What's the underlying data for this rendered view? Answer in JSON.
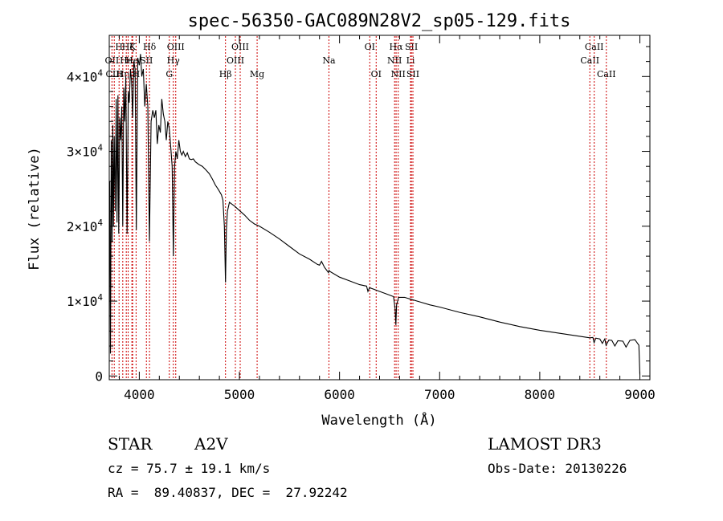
{
  "chart_data": {
    "type": "line",
    "title": "spec-56350-GAC089N28V2_sp05-129.fits",
    "xlabel": "Wavelength (Å)",
    "ylabel": "Flux (relative)",
    "xlim": [
      3700,
      9100
    ],
    "ylim": [
      -500,
      45500
    ],
    "x_ticks": [
      {
        "value": 4000,
        "label": "4000"
      },
      {
        "value": 5000,
        "label": "5000"
      },
      {
        "value": 6000,
        "label": "6000"
      },
      {
        "value": 7000,
        "label": "7000"
      },
      {
        "value": 8000,
        "label": "8000"
      },
      {
        "value": 9000,
        "label": "9000"
      }
    ],
    "y_ticks": [
      {
        "value": 0,
        "label": "0",
        "exp": ""
      },
      {
        "value": 10000,
        "label": "1×10",
        "exp": "4"
      },
      {
        "value": 20000,
        "label": "2×10",
        "exp": "4"
      },
      {
        "value": 30000,
        "label": "3×10",
        "exp": "4"
      },
      {
        "value": 40000,
        "label": "4×10",
        "exp": "4"
      }
    ],
    "line_color": "#000000",
    "marker_color": "#cc0000",
    "spectrum": [
      [
        3705,
        26000
      ],
      [
        3712,
        3000
      ],
      [
        3720,
        31500
      ],
      [
        3728,
        18000
      ],
      [
        3735,
        33500
      ],
      [
        3742,
        20000
      ],
      [
        3750,
        32000
      ],
      [
        3760,
        22000
      ],
      [
        3770,
        37000
      ],
      [
        3778,
        20500
      ],
      [
        3787,
        37500
      ],
      [
        3795,
        19000
      ],
      [
        3805,
        34500
      ],
      [
        3815,
        31500
      ],
      [
        3825,
        36000
      ],
      [
        3835,
        20000
      ],
      [
        3845,
        38500
      ],
      [
        3855,
        34000
      ],
      [
        3865,
        40000
      ],
      [
        3878,
        19000
      ],
      [
        3890,
        38000
      ],
      [
        3900,
        36500
      ],
      [
        3912,
        41000
      ],
      [
        3922,
        39500
      ],
      [
        3934,
        34500
      ],
      [
        3945,
        42000
      ],
      [
        3958,
        41000
      ],
      [
        3970,
        19500
      ],
      [
        3985,
        42500
      ],
      [
        4000,
        41500
      ],
      [
        4012,
        43000
      ],
      [
        4025,
        40000
      ],
      [
        4040,
        41000
      ],
      [
        4055,
        36000
      ],
      [
        4070,
        39000
      ],
      [
        4085,
        36000
      ],
      [
        4101,
        18000
      ],
      [
        4118,
        34000
      ],
      [
        4135,
        35500
      ],
      [
        4150,
        34500
      ],
      [
        4165,
        35500
      ],
      [
        4180,
        31000
      ],
      [
        4195,
        33500
      ],
      [
        4210,
        32500
      ],
      [
        4225,
        37000
      ],
      [
        4240,
        35000
      ],
      [
        4255,
        34000
      ],
      [
        4270,
        31500
      ],
      [
        4285,
        34000
      ],
      [
        4300,
        33000
      ],
      [
        4315,
        30500
      ],
      [
        4328,
        28000
      ],
      [
        4340,
        16000
      ],
      [
        4352,
        28000
      ],
      [
        4365,
        30000
      ],
      [
        4380,
        29000
      ],
      [
        4395,
        31500
      ],
      [
        4410,
        30000
      ],
      [
        4425,
        29500
      ],
      [
        4440,
        30000
      ],
      [
        4460,
        29300
      ],
      [
        4480,
        29800
      ],
      [
        4500,
        29000
      ],
      [
        4520,
        28900
      ],
      [
        4540,
        29000
      ],
      [
        4560,
        28600
      ],
      [
        4580,
        28400
      ],
      [
        4600,
        28200
      ],
      [
        4630,
        28000
      ],
      [
        4660,
        27600
      ],
      [
        4700,
        27000
      ],
      [
        4730,
        26300
      ],
      [
        4760,
        25500
      ],
      [
        4790,
        24900
      ],
      [
        4820,
        24200
      ],
      [
        4835,
        23500
      ],
      [
        4850,
        20000
      ],
      [
        4861,
        12500
      ],
      [
        4870,
        19500
      ],
      [
        4880,
        22000
      ],
      [
        4900,
        23200
      ],
      [
        4920,
        23000
      ],
      [
        4950,
        22700
      ],
      [
        5000,
        22100
      ],
      [
        5050,
        21500
      ],
      [
        5100,
        20800
      ],
      [
        5150,
        20300
      ],
      [
        5200,
        20000
      ],
      [
        5300,
        19200
      ],
      [
        5400,
        18300
      ],
      [
        5500,
        17300
      ],
      [
        5600,
        16300
      ],
      [
        5700,
        15600
      ],
      [
        5780,
        14900
      ],
      [
        5800,
        14800
      ],
      [
        5820,
        15300
      ],
      [
        5850,
        14500
      ],
      [
        5890,
        13800
      ],
      [
        5895,
        14100
      ],
      [
        5900,
        14000
      ],
      [
        6000,
        13200
      ],
      [
        6100,
        12700
      ],
      [
        6200,
        12200
      ],
      [
        6270,
        12000
      ],
      [
        6284,
        11300
      ],
      [
        6300,
        11800
      ],
      [
        6400,
        11300
      ],
      [
        6500,
        10800
      ],
      [
        6540,
        10600
      ],
      [
        6555,
        9000
      ],
      [
        6563,
        6800
      ],
      [
        6570,
        9500
      ],
      [
        6590,
        10500
      ],
      [
        6650,
        10500
      ],
      [
        6700,
        10300
      ],
      [
        6800,
        9900
      ],
      [
        6900,
        9500
      ],
      [
        7000,
        9200
      ],
      [
        7200,
        8500
      ],
      [
        7400,
        7900
      ],
      [
        7600,
        7200
      ],
      [
        7800,
        6600
      ],
      [
        8000,
        6100
      ],
      [
        8200,
        5700
      ],
      [
        8400,
        5300
      ],
      [
        8500,
        5100
      ],
      [
        8530,
        5150
      ],
      [
        8542,
        4450
      ],
      [
        8560,
        5050
      ],
      [
        8600,
        4950
      ],
      [
        8625,
        4350
      ],
      [
        8650,
        4950
      ],
      [
        8662,
        4100
      ],
      [
        8690,
        4800
      ],
      [
        8720,
        4750
      ],
      [
        8750,
        4000
      ],
      [
        8780,
        4700
      ],
      [
        8830,
        4650
      ],
      [
        8862,
        3850
      ],
      [
        8900,
        4750
      ],
      [
        8950,
        4850
      ],
      [
        8990,
        4100
      ],
      [
        9000,
        200
      ]
    ],
    "line_markers": [
      {
        "wave": 3727,
        "label": "OII",
        "row": 2
      },
      {
        "wave": 3750,
        "label": "CIII",
        "row": 3
      },
      {
        "wave": 3798,
        "label": "H",
        "row": 1
      },
      {
        "wave": 3835,
        "label": "Hη",
        "row": 3
      },
      {
        "wave": 3870,
        "label": "He",
        "row": 2
      },
      {
        "wave": 3889,
        "label": "Hζ",
        "row": 1
      },
      {
        "wave": 3926,
        "label": "He",
        "row": 2
      },
      {
        "wave": 3934,
        "label": "K",
        "row": 1
      },
      {
        "wave": 3968,
        "label": "H",
        "row": 3
      },
      {
        "wave": 4071,
        "label": "SII",
        "row": 2
      },
      {
        "wave": 4102,
        "label": "Hδ",
        "row": 1
      },
      {
        "wave": 4300,
        "label": "G",
        "row": 3
      },
      {
        "wave": 4340,
        "label": "Hγ",
        "row": 2
      },
      {
        "wave": 4364,
        "label": "OIII",
        "row": 1
      },
      {
        "wave": 4861,
        "label": "Hβ",
        "row": 3
      },
      {
        "wave": 4960,
        "label": "OIII",
        "row": 2
      },
      {
        "wave": 5008,
        "label": "OIII",
        "row": 1
      },
      {
        "wave": 5177,
        "label": "Mg",
        "row": 3
      },
      {
        "wave": 5894,
        "label": "Na",
        "row": 2
      },
      {
        "wave": 6302,
        "label": "OI",
        "row": 1
      },
      {
        "wave": 6366,
        "label": "OI",
        "row": 3
      },
      {
        "wave": 6550,
        "label": "NII",
        "row": 2
      },
      {
        "wave": 6565,
        "label": "Hα",
        "row": 1
      },
      {
        "wave": 6586,
        "label": "NII",
        "row": 3
      },
      {
        "wave": 6709,
        "label": "Li",
        "row": 2
      },
      {
        "wave": 6718,
        "label": "SII",
        "row": 1
      },
      {
        "wave": 6733,
        "label": "SII",
        "row": 3
      },
      {
        "wave": 8500,
        "label": "CaII",
        "row": 2
      },
      {
        "wave": 8544,
        "label": "CaII",
        "row": 1
      },
      {
        "wave": 8665,
        "label": "CaII",
        "row": 3
      }
    ]
  },
  "info": {
    "object_class": "STAR",
    "subclass": "A2V",
    "survey": "LAMOST DR3",
    "cz": "cz = 75.7 ± 19.1 km/s",
    "obs_date": "Obs-Date: 20130226",
    "coords": "RA =  89.40837, DEC =  27.92242"
  }
}
